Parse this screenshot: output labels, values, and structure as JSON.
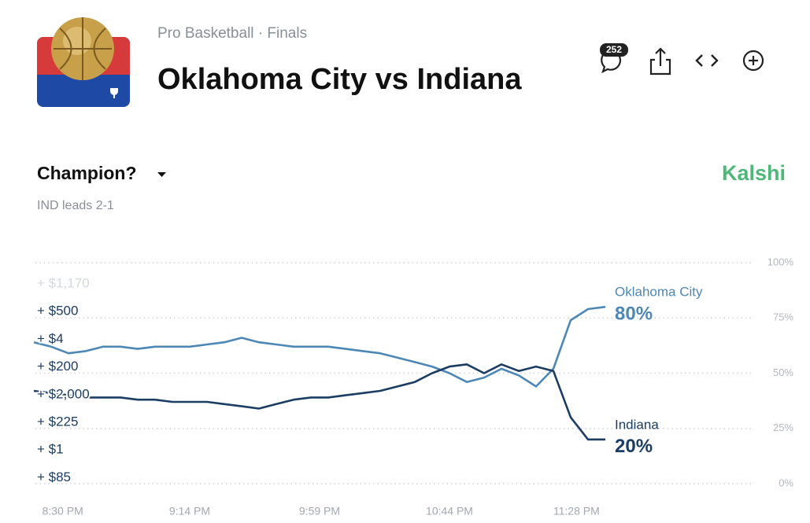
{
  "header": {
    "category": "Pro Basketball · Finals",
    "title": "Oklahoma City vs Indiana",
    "comments": "252"
  },
  "market": {
    "question": "Champion?",
    "status": "IND leads 2-1",
    "brand": "Kalshi"
  },
  "trades": [
    "+ $1,170",
    "+ $500",
    "+ $4",
    "+ $200",
    "+ $2,000",
    "+ $225",
    "+ $1",
    "+ $85"
  ],
  "chart_data": {
    "type": "line",
    "x": [
      1220,
      1226,
      1232,
      1238,
      1244,
      1250,
      1256,
      1262,
      1268,
      1274,
      1280,
      1286,
      1292,
      1298,
      1304,
      1310,
      1316,
      1322,
      1328,
      1334,
      1340,
      1346,
      1352,
      1358,
      1364,
      1370,
      1376,
      1382,
      1388,
      1394,
      1400,
      1406,
      1412,
      1418
    ],
    "xlim": [
      1220,
      1418
    ],
    "xticks": [
      {
        "value": 1230,
        "label": "8:30 PM"
      },
      {
        "value": 1274,
        "label": "9:14 PM"
      },
      {
        "value": 1319,
        "label": "9:59 PM"
      },
      {
        "value": 1364,
        "label": "10:44 PM"
      },
      {
        "value": 1408,
        "label": "11:28 PM"
      }
    ],
    "ylim": [
      0,
      100
    ],
    "yticks": [
      {
        "value": 0,
        "label": "0%"
      },
      {
        "value": 25,
        "label": "25%"
      },
      {
        "value": 50,
        "label": "50%"
      },
      {
        "value": 75,
        "label": "75%"
      },
      {
        "value": 100,
        "label": "100%"
      }
    ],
    "grid": true,
    "series": [
      {
        "name": "Oklahoma City",
        "color": "#4d87b6",
        "values": [
          64,
          62,
          59,
          60,
          62,
          62,
          61,
          62,
          62,
          62,
          63,
          64,
          66,
          64,
          63,
          62,
          62,
          62,
          61,
          60,
          59,
          57,
          55,
          53,
          50,
          46,
          48,
          52,
          49,
          44,
          52,
          74,
          79,
          80
        ],
        "value_labels": [
          null,
          null,
          null,
          null,
          null,
          null,
          null,
          null,
          null,
          null,
          null,
          null,
          null,
          null,
          null,
          null,
          null,
          null,
          null,
          null,
          null,
          null,
          null,
          null,
          null,
          null,
          null,
          null,
          null,
          null,
          null,
          null,
          null,
          "80%"
        ]
      },
      {
        "name": "Indiana",
        "color": "#1c3d63",
        "values": [
          42,
          41,
          40,
          39,
          39,
          39,
          38,
          38,
          37,
          37,
          37,
          36,
          35,
          34,
          36,
          38,
          39,
          39,
          40,
          41,
          42,
          44,
          46,
          50,
          53,
          54,
          50,
          54,
          51,
          53,
          51,
          30,
          20,
          20
        ],
        "value_labels": [
          null,
          null,
          null,
          null,
          null,
          null,
          null,
          null,
          null,
          null,
          null,
          null,
          null,
          null,
          null,
          null,
          null,
          null,
          null,
          null,
          null,
          null,
          null,
          null,
          null,
          null,
          null,
          null,
          null,
          null,
          null,
          null,
          null,
          "20%"
        ]
      }
    ]
  }
}
